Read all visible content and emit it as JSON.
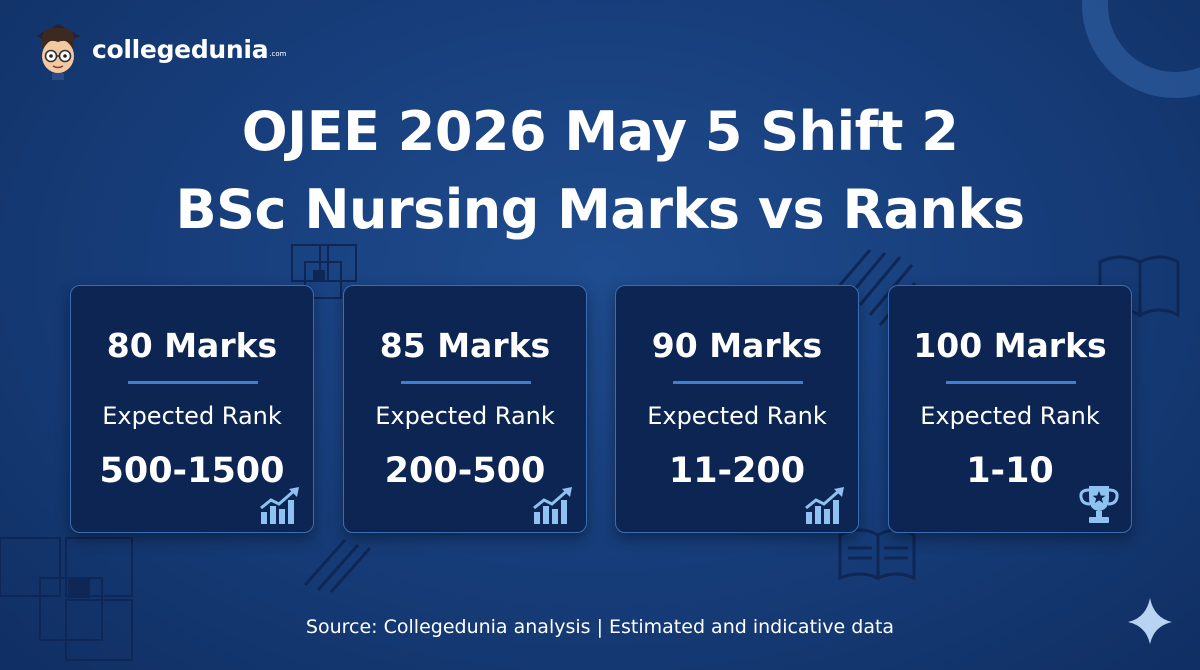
{
  "logo": {
    "name": "collegedunia",
    "tm": ".com"
  },
  "title": {
    "line1": "OJEE 2026 May 5 Shift 2",
    "line2": "BSc Nursing Marks vs Ranks"
  },
  "cards": [
    {
      "marks": "80 Marks",
      "label": "Expected Rank",
      "rank": "500-1500",
      "icon": "bar-chart-up-icon"
    },
    {
      "marks": "85 Marks",
      "label": "Expected Rank",
      "rank": "200-500",
      "icon": "bar-chart-up-icon"
    },
    {
      "marks": "90 Marks",
      "label": "Expected Rank",
      "rank": "11-200",
      "icon": "bar-chart-up-icon"
    },
    {
      "marks": "100 Marks",
      "label": "Expected Rank",
      "rank": "1-10",
      "icon": "trophy-icon"
    }
  ],
  "source": "Source: Collegedunia analysis | Estimated and indicative data",
  "colors": {
    "background": "#163c78",
    "card": "#0d2552",
    "card_border": "#3b6db5",
    "accent": "#3d7fd1",
    "icon": "#8fc2f0"
  }
}
